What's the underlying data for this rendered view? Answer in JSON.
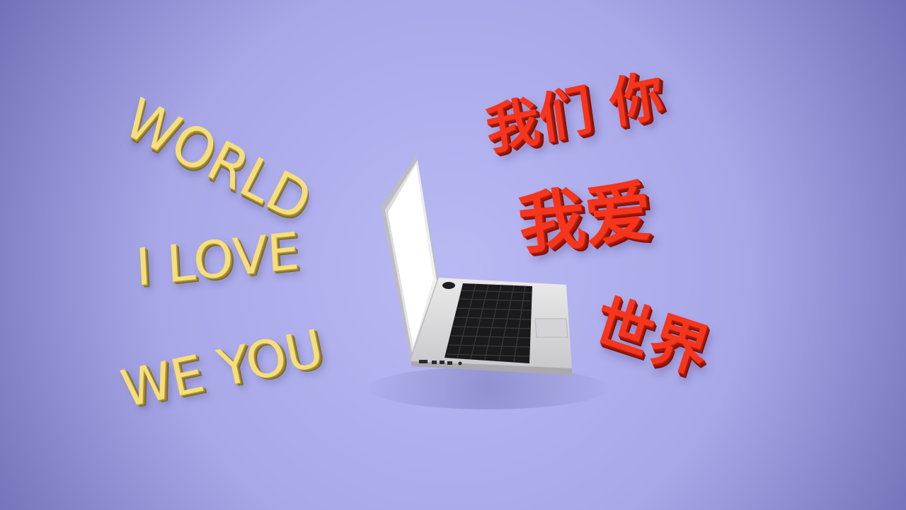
{
  "colors": {
    "background_center": "#b9b9f4",
    "background_edge": "#7c7cc4",
    "english_text": "#f6df7a",
    "chinese_text": "#f5351c"
  },
  "english": {
    "line1": "WORLD",
    "line2": "I LOVE",
    "line3": "WE YOU"
  },
  "chinese": {
    "line1": "我们 你",
    "line2": "我爱",
    "line3": "世界"
  },
  "object": {
    "name": "laptop-icon"
  }
}
